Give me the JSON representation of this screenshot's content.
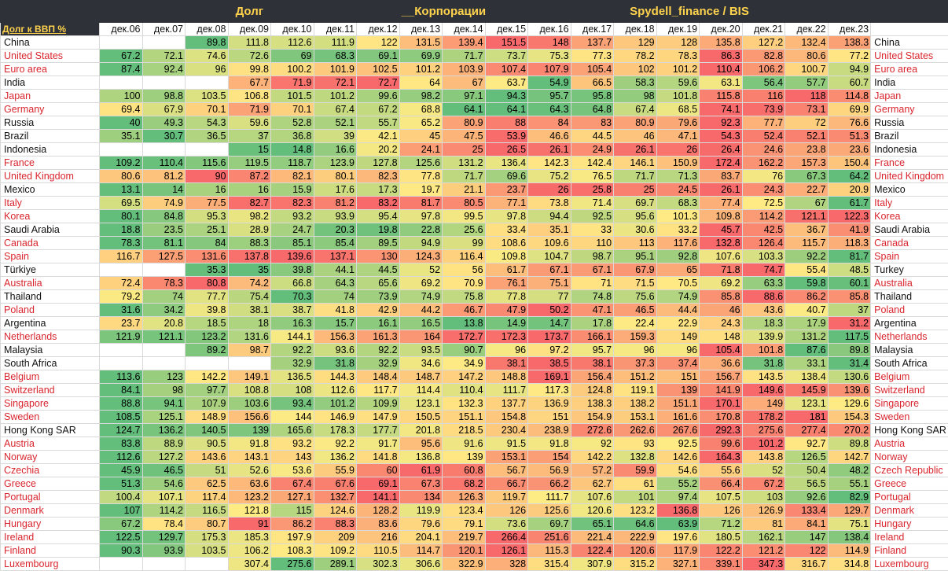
{
  "titles": {
    "left": "Долг",
    "middle": "__Корпорации",
    "right": "Spydell_finance / BIS"
  },
  "corner_label": "Долг к ВВП %",
  "years": [
    "дек.06",
    "дек.07",
    "дек.08",
    "дек.09",
    "дек.10",
    "дек.11",
    "дек.12",
    "дек.13",
    "дек.14",
    "дек.15",
    "дек.16",
    "дек.17",
    "дек.18",
    "дек.19",
    "дек.20",
    "дек.21",
    "дек.22",
    "дек.23"
  ],
  "colors": {
    "label_red": "#d9262e",
    "header_bg": "#2e3138",
    "header_text": "#ffd34d",
    "low": "#63be7b",
    "mid": "#ffeb84",
    "high": "#f8696b"
  },
  "rows": [
    {
      "name": "China",
      "right": "China",
      "red": false,
      "values": [
        "",
        "",
        "89.8",
        "111.8",
        "112.6",
        "111.9",
        "122",
        "131.5",
        "139.4",
        "151.5",
        "148",
        "137.7",
        "129",
        "128",
        "135.8",
        "127.2",
        "132.4",
        "138.3"
      ]
    },
    {
      "name": "United States",
      "right": "United States",
      "red": true,
      "values": [
        "67.2",
        "72.1",
        "74.6",
        "72.6",
        "69",
        "68.3",
        "69.1",
        "69.9",
        "71.7",
        "73.7",
        "75.3",
        "77.3",
        "78.2",
        "78.3",
        "86.3",
        "82.8",
        "80.6",
        "77.2"
      ]
    },
    {
      "name": "Euro area",
      "right": "Euro area",
      "red": true,
      "values": [
        "87.4",
        "92.4",
        "96",
        "99.8",
        "100.2",
        "101.9",
        "102.5",
        "101.2",
        "103.9",
        "107.4",
        "107.9",
        "105.4",
        "102",
        "101.2",
        "110.4",
        "106.2",
        "100.7",
        "94.9"
      ]
    },
    {
      "name": "India",
      "right": "India",
      "red": false,
      "values": [
        "",
        "",
        "",
        "67.7",
        "71.9",
        "72.1",
        "72.7",
        "64",
        "67",
        "63.7",
        "54.9",
        "66.5",
        "58.3",
        "59.6",
        "63.1",
        "56.4",
        "57.7",
        "60.7"
      ]
    },
    {
      "name": "Japan",
      "right": "Japan",
      "red": true,
      "values": [
        "100",
        "98.8",
        "103.5",
        "106.8",
        "101.5",
        "101.2",
        "99.6",
        "98.2",
        "97.1",
        "94.3",
        "95.7",
        "95.8",
        "98",
        "101.8",
        "115.8",
        "116",
        "118",
        "114.8"
      ]
    },
    {
      "name": "Germany",
      "right": "Germany",
      "red": true,
      "values": [
        "69.4",
        "67.9",
        "70.1",
        "71.9",
        "70.1",
        "67.4",
        "67.2",
        "68.8",
        "64.1",
        "64.1",
        "64.3",
        "64.8",
        "67.4",
        "68.5",
        "74.1",
        "73.9",
        "73.1",
        "69.9"
      ]
    },
    {
      "name": "Russia",
      "right": "Russia",
      "red": false,
      "values": [
        "40",
        "49.3",
        "54.3",
        "59.6",
        "52.8",
        "52.1",
        "55.7",
        "65.2",
        "80.9",
        "88",
        "84",
        "83",
        "80.9",
        "79.6",
        "92.3",
        "77.7",
        "72",
        "76.6"
      ]
    },
    {
      "name": "Brazil",
      "right": "Brazil",
      "red": false,
      "values": [
        "35.1",
        "30.7",
        "36.5",
        "37",
        "36.8",
        "39",
        "42.1",
        "45",
        "47.5",
        "53.9",
        "46.6",
        "44.5",
        "46",
        "47.1",
        "54.3",
        "52.4",
        "52.1",
        "51.3"
      ]
    },
    {
      "name": "Indonesia",
      "right": "Indonesia",
      "red": false,
      "values": [
        "",
        "",
        "",
        "15",
        "14.8",
        "16.6",
        "20.2",
        "24.1",
        "25",
        "26.5",
        "26.1",
        "24.9",
        "26.1",
        "26",
        "26.4",
        "24.6",
        "23.8",
        "23.6"
      ]
    },
    {
      "name": "France",
      "right": "France",
      "red": true,
      "values": [
        "109.2",
        "110.4",
        "115.6",
        "119.5",
        "118.7",
        "123.9",
        "127.8",
        "125.6",
        "131.2",
        "136.4",
        "142.3",
        "142.4",
        "146.1",
        "150.9",
        "172.4",
        "162.2",
        "157.3",
        "150.4"
      ]
    },
    {
      "name": "United Kingdom",
      "right": "United Kingdom",
      "red": true,
      "values": [
        "80.6",
        "81.2",
        "90",
        "87.2",
        "82.1",
        "80.1",
        "82.3",
        "77.8",
        "71.7",
        "69.6",
        "75.2",
        "76.5",
        "71.7",
        "71.3",
        "83.7",
        "76",
        "67.3",
        "64.2"
      ]
    },
    {
      "name": "Mexico",
      "right": "Mexico",
      "red": false,
      "values": [
        "13.1",
        "14",
        "16",
        "16",
        "15.9",
        "17.6",
        "17.3",
        "19.7",
        "21.1",
        "23.7",
        "26",
        "25.8",
        "25",
        "24.5",
        "26.1",
        "24.3",
        "22.7",
        "20.9"
      ]
    },
    {
      "name": "Italy",
      "right": "Italy",
      "red": true,
      "values": [
        "69.5",
        "74.9",
        "77.5",
        "82.7",
        "82.3",
        "81.2",
        "83.2",
        "81.7",
        "80.5",
        "77.1",
        "73.8",
        "71.4",
        "69.7",
        "68.3",
        "77.4",
        "72.5",
        "67",
        "61.7"
      ]
    },
    {
      "name": "Korea",
      "right": "Korea",
      "red": true,
      "values": [
        "80.1",
        "84.8",
        "95.3",
        "98.2",
        "93.2",
        "93.9",
        "95.4",
        "97.8",
        "99.5",
        "97.8",
        "94.4",
        "92.5",
        "95.6",
        "101.3",
        "109.8",
        "114.2",
        "121.1",
        "122.3"
      ]
    },
    {
      "name": "Saudi Arabia",
      "right": "Saudi Arabia",
      "red": false,
      "values": [
        "18.8",
        "23.5",
        "25.1",
        "28.9",
        "24.7",
        "20.3",
        "19.8",
        "22.8",
        "25.6",
        "33.4",
        "35.1",
        "33",
        "30.6",
        "33.2",
        "45.7",
        "42.5",
        "36.7",
        "41.9"
      ]
    },
    {
      "name": "Canada",
      "right": "Canada",
      "red": true,
      "values": [
        "78.3",
        "81.1",
        "84",
        "88.3",
        "85.1",
        "85.4",
        "89.5",
        "94.9",
        "99",
        "108.6",
        "109.6",
        "110",
        "113",
        "117.6",
        "132.8",
        "126.4",
        "115.7",
        "118.3"
      ]
    },
    {
      "name": "Spain",
      "right": "Spain",
      "red": true,
      "values": [
        "116.7",
        "127.5",
        "131.6",
        "137.8",
        "139.6",
        "137.1",
        "130",
        "124.3",
        "116.4",
        "109.8",
        "104.7",
        "98.7",
        "95.1",
        "92.8",
        "107.6",
        "103.3",
        "92.2",
        "81.7"
      ]
    },
    {
      "name": "Türkiye",
      "right": "Turkey",
      "red": false,
      "values": [
        "",
        "",
        "35.3",
        "35",
        "39.8",
        "44.1",
        "44.5",
        "52",
        "56",
        "61.7",
        "67.1",
        "67.1",
        "67.9",
        "65",
        "71.8",
        "74.7",
        "55.4",
        "48.5"
      ]
    },
    {
      "name": "Australia",
      "right": "Australia",
      "red": true,
      "values": [
        "72.4",
        "78.3",
        "80.8",
        "74.2",
        "66.8",
        "64.3",
        "65.6",
        "69.2",
        "70.9",
        "76.1",
        "75.1",
        "71",
        "71.5",
        "70.5",
        "69.2",
        "63.3",
        "59.8",
        "60.1"
      ]
    },
    {
      "name": "Thailand",
      "right": "Thailand",
      "red": false,
      "values": [
        "79.2",
        "74",
        "77.7",
        "75.4",
        "70.3",
        "74",
        "73.9",
        "74.9",
        "75.8",
        "77.8",
        "77",
        "74.8",
        "75.6",
        "74.9",
        "85.8",
        "88.6",
        "86.2",
        "85.8"
      ]
    },
    {
      "name": "Poland",
      "right": "Poland",
      "red": true,
      "values": [
        "31.6",
        "34.2",
        "39.8",
        "38.1",
        "38.7",
        "41.8",
        "42.9",
        "44.2",
        "46.7",
        "47.9",
        "50.2",
        "47.1",
        "46.5",
        "44.4",
        "46",
        "43.6",
        "40.7",
        "37"
      ]
    },
    {
      "name": "Argentina",
      "right": "Argentina",
      "red": false,
      "values": [
        "23.7",
        "20.8",
        "18.5",
        "18",
        "16.3",
        "15.7",
        "16.1",
        "16.5",
        "13.8",
        "14.9",
        "14.7",
        "17.8",
        "22.4",
        "22.9",
        "24.3",
        "18.3",
        "17.9",
        "31.2"
      ]
    },
    {
      "name": "Netherlands",
      "right": "Netherlands",
      "red": true,
      "values": [
        "121.9",
        "121.1",
        "123.2",
        "131.6",
        "144.1",
        "156.3",
        "161.3",
        "164",
        "172.7",
        "172.3",
        "173.7",
        "166.1",
        "159.3",
        "149",
        "148",
        "139.9",
        "131.2",
        "117.5"
      ]
    },
    {
      "name": "Malaysia",
      "right": "Malaysia",
      "red": false,
      "values": [
        "",
        "",
        "89.2",
        "98.7",
        "92.2",
        "93.6",
        "92.2",
        "93.5",
        "90.7",
        "96",
        "97.2",
        "95.7",
        "96",
        "96",
        "105.4",
        "101.8",
        "87.6",
        "89.8"
      ]
    },
    {
      "name": "South Africa",
      "right": "South Africa",
      "red": false,
      "values": [
        "",
        "",
        "",
        "",
        "32.9",
        "31.8",
        "32.9",
        "34.6",
        "34.9",
        "38.1",
        "38.5",
        "38.1",
        "37.3",
        "37.4",
        "36.6",
        "31.8",
        "33.1",
        "31.4"
      ]
    },
    {
      "name": "Belgium",
      "right": "Belgium",
      "red": true,
      "values": [
        "113.6",
        "123",
        "142.2",
        "149.1",
        "136.5",
        "144.3",
        "148.4",
        "148.7",
        "147.2",
        "148.8",
        "169.1",
        "156.4",
        "151.2",
        "151",
        "156.7",
        "143.5",
        "138.4",
        "130.6"
      ]
    },
    {
      "name": "Switzerland",
      "right": "Switzerland",
      "red": true,
      "values": [
        "84.1",
        "98",
        "97.7",
        "108.8",
        "108",
        "112.6",
        "117.7",
        "114.4",
        "110.4",
        "111.7",
        "117.3",
        "124.8",
        "119.1",
        "139",
        "141.9",
        "149.6",
        "145.9",
        "139.6"
      ]
    },
    {
      "name": "Singapore",
      "right": "Singapore",
      "red": true,
      "values": [
        "88.8",
        "94.1",
        "107.9",
        "103.6",
        "93.4",
        "101.2",
        "109.9",
        "123.1",
        "132.3",
        "137.7",
        "136.9",
        "138.3",
        "138.2",
        "151.1",
        "170.1",
        "149",
        "123.1",
        "129.6"
      ]
    },
    {
      "name": "Sweden",
      "right": "Sweden",
      "red": true,
      "values": [
        "108.5",
        "125.1",
        "148.9",
        "156.6",
        "144",
        "146.9",
        "147.9",
        "150.5",
        "151.1",
        "154.8",
        "151",
        "154.9",
        "153.1",
        "161.6",
        "170.8",
        "178.2",
        "181",
        "154.3"
      ]
    },
    {
      "name": "Hong Kong SAR",
      "right": "Hong Kong SAR",
      "red": false,
      "values": [
        "124.7",
        "136.2",
        "140.5",
        "139",
        "165.6",
        "178.3",
        "177.7",
        "201.8",
        "218.5",
        "230.4",
        "238.9",
        "272.6",
        "262.6",
        "267.6",
        "292.3",
        "275.6",
        "277.4",
        "270.2"
      ]
    },
    {
      "name": "Austria",
      "right": "Austria",
      "red": true,
      "values": [
        "83.8",
        "88.9",
        "90.5",
        "91.8",
        "93.2",
        "92.2",
        "91.7",
        "95.6",
        "91.6",
        "91.5",
        "91.8",
        "92",
        "93",
        "92.5",
        "99.6",
        "101.2",
        "92.7",
        "89.8"
      ]
    },
    {
      "name": "Norway",
      "right": "Norway",
      "red": true,
      "values": [
        "112.6",
        "127.2",
        "143.6",
        "143.1",
        "143",
        "136.2",
        "141.8",
        "136.8",
        "139",
        "153.1",
        "154",
        "142.2",
        "132.8",
        "142.6",
        "164.3",
        "143.8",
        "126.5",
        "142.7"
      ]
    },
    {
      "name": "Czechia",
      "right": "Czech Republic",
      "red": true,
      "values": [
        "45.9",
        "46.5",
        "51",
        "52.6",
        "53.6",
        "55.9",
        "60",
        "61.9",
        "60.8",
        "56.7",
        "56.9",
        "57.2",
        "59.9",
        "54.6",
        "55.6",
        "52",
        "50.4",
        "48.2"
      ]
    },
    {
      "name": "Greece",
      "right": "Greece",
      "red": true,
      "values": [
        "51.3",
        "54.6",
        "62.5",
        "63.6",
        "67.4",
        "67.6",
        "69.1",
        "67.3",
        "68.2",
        "66.7",
        "66.2",
        "62.7",
        "61",
        "55.2",
        "66.4",
        "67.2",
        "56.5",
        "55.1"
      ]
    },
    {
      "name": "Portugal",
      "right": "Portugal",
      "red": true,
      "values": [
        "100.4",
        "107.1",
        "117.4",
        "123.2",
        "127.1",
        "132.7",
        "141.1",
        "134",
        "126.3",
        "119.7",
        "111.7",
        "107.6",
        "101",
        "97.4",
        "107.5",
        "103",
        "92.6",
        "82.9"
      ]
    },
    {
      "name": "Denmark",
      "right": "Denmark",
      "red": true,
      "values": [
        "107",
        "114.2",
        "116.5",
        "121.8",
        "115",
        "124.6",
        "128.2",
        "119.9",
        "123.4",
        "126",
        "125.6",
        "120.6",
        "123.2",
        "136.8",
        "126",
        "126.9",
        "133.4",
        "129.7"
      ]
    },
    {
      "name": "Hungary",
      "right": "Hungary",
      "red": true,
      "values": [
        "67.2",
        "78.4",
        "80.7",
        "91",
        "86.2",
        "88.3",
        "83.6",
        "79.6",
        "79.1",
        "73.6",
        "69.7",
        "65.1",
        "64.6",
        "63.9",
        "71.2",
        "81",
        "84.1",
        "75.1"
      ]
    },
    {
      "name": "Ireland",
      "right": "Ireland",
      "red": true,
      "values": [
        "122.5",
        "129.7",
        "175.3",
        "185.3",
        "197.9",
        "209",
        "216",
        "204.1",
        "219.7",
        "266.4",
        "251.6",
        "221.4",
        "222.9",
        "197.6",
        "180.5",
        "162.1",
        "147",
        "138.4"
      ]
    },
    {
      "name": "Finland",
      "right": "Finland",
      "red": true,
      "values": [
        "90.3",
        "93.9",
        "103.5",
        "106.2",
        "108.3",
        "109.2",
        "110.5",
        "114.7",
        "120.1",
        "126.1",
        "115.3",
        "122.4",
        "120.6",
        "117.9",
        "122.2",
        "121.2",
        "122",
        "114.9"
      ]
    },
    {
      "name": "Luxembourg",
      "right": "Luxembourg",
      "red": true,
      "values": [
        "",
        "",
        "",
        "307.4",
        "275.6",
        "289.1",
        "302.3",
        "306.6",
        "322.9",
        "328",
        "315.4",
        "307.9",
        "315.2",
        "327.1",
        "339.1",
        "347.3",
        "316.7",
        "314.8"
      ]
    }
  ]
}
